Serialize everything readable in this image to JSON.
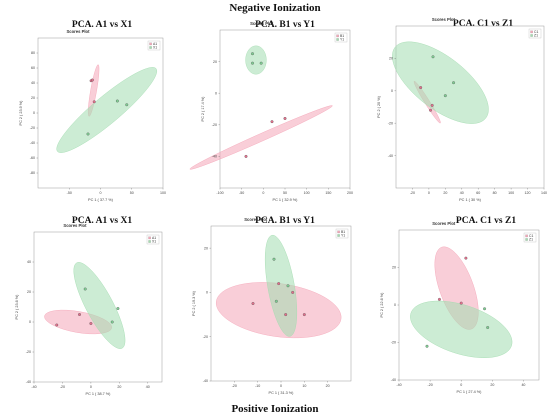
{
  "page": {
    "top_label": "Negative Ionization",
    "bottom_label": "Positive Ionization"
  },
  "colors": {
    "groupA": "#f4a6b8",
    "groupB": "#a3dcb0",
    "groupA_point": "#e46f8c",
    "groupB_point": "#7fcf93"
  },
  "chart_data": [
    {
      "type": "scatter",
      "title": "PCA. A1 vs X1",
      "subtitle": "Scores Plot",
      "xlabel": "PC 1 ( 37.7 %)",
      "ylabel": "PC 2 ( 23.9 %)",
      "xlim": [
        -100,
        100
      ],
      "ylim": [
        -100,
        100
      ],
      "xticks": [
        -50,
        0,
        50,
        100
      ],
      "yticks": [
        -80,
        -60,
        -40,
        -20,
        0,
        20,
        40,
        60,
        80
      ],
      "legend": [
        "A1",
        "X1"
      ],
      "series": [
        {
          "name": "A1",
          "points": [
            [
              -15,
              43
            ],
            [
              -13,
              44
            ],
            [
              -10,
              15
            ]
          ],
          "ellipse": {
            "cx": -11,
            "cy": 30,
            "rx": 42,
            "ry": 4,
            "angle": 80
          }
        },
        {
          "name": "X1",
          "points": [
            [
              -20,
              -28
            ],
            [
              27,
              16
            ],
            [
              42,
              11
            ]
          ],
          "ellipse": {
            "cx": 10,
            "cy": 4,
            "rx": 103,
            "ry": 18,
            "angle": 40
          }
        }
      ]
    },
    {
      "type": "scatter",
      "title": "PCA. B1 vs Y1",
      "subtitle": "Scores Plot",
      "xlabel": "PC 1 ( 32.9 %)",
      "ylabel": "PC 2 ( 17.4 %)",
      "xlim": [
        -100,
        200
      ],
      "ylim": [
        -60,
        40
      ],
      "xticks": [
        -100,
        -50,
        0,
        50,
        100,
        150,
        200
      ],
      "yticks": [
        -40,
        -20,
        0,
        20
      ],
      "legend": [
        "B1",
        "Y1"
      ],
      "series": [
        {
          "name": "B1",
          "points": [
            [
              -40,
              -40
            ],
            [
              20,
              -18
            ],
            [
              50,
              -16
            ]
          ],
          "ellipse": {
            "cx": -5,
            "cy": -28,
            "rx": 180,
            "ry": 2.4,
            "angle": 24
          }
        },
        {
          "name": "Y1",
          "points": [
            [
              -25,
              25
            ],
            [
              -25,
              19
            ],
            [
              -5,
              19
            ]
          ],
          "ellipse": {
            "cx": -17,
            "cy": 21,
            "rx": 24,
            "ry": 9,
            "angle": 0
          }
        }
      ]
    },
    {
      "type": "scatter",
      "title": "PCA. C1 vs Z1",
      "subtitle": "Scores Plot",
      "xlabel": "PC 1 ( 30 %)",
      "ylabel": "PC 2 ( 20 %)",
      "xlim": [
        -40,
        140
      ],
      "ylim": [
        -60,
        40
      ],
      "xticks": [
        -20,
        0,
        20,
        40,
        60,
        80,
        100,
        120,
        140
      ],
      "yticks": [
        -40,
        -20,
        0,
        20
      ],
      "legend": [
        "C1",
        "Z1"
      ],
      "series": [
        {
          "name": "C1",
          "points": [
            [
              -10,
              2
            ],
            [
              4,
              -9
            ],
            [
              2,
              -12
            ]
          ],
          "ellipse": {
            "cx": -2,
            "cy": -7,
            "rx": 30,
            "ry": 1.5,
            "angle": -58
          }
        },
        {
          "name": "Z1",
          "points": [
            [
              5,
              21
            ],
            [
              30,
              5
            ],
            [
              20,
              -3
            ]
          ],
          "ellipse": {
            "cx": 14,
            "cy": 5,
            "rx": 70,
            "ry": 16,
            "angle": -38
          }
        }
      ]
    },
    {
      "type": "scatter",
      "title": "PCA. A1 vs X1",
      "subtitle": "Scores Plot",
      "xlabel": "PC 1 ( 38.7 %)",
      "ylabel": "PC 2 ( 23.6 %)",
      "xlim": [
        -40,
        50
      ],
      "ylim": [
        -40,
        60
      ],
      "xticks": [
        -40,
        -20,
        0,
        20,
        40
      ],
      "yticks": [
        -40,
        -20,
        0,
        20,
        40
      ],
      "legend": [
        "A1",
        "X1"
      ],
      "series": [
        {
          "name": "A1",
          "points": [
            [
              -24,
              -2
            ],
            [
              -8,
              5
            ],
            [
              0,
              -1
            ]
          ],
          "ellipse": {
            "cx": -9,
            "cy": 0,
            "rx": 24,
            "ry": 7,
            "angle": -10
          }
        },
        {
          "name": "X1",
          "points": [
            [
              -4,
              22
            ],
            [
              19,
              9
            ],
            [
              15,
              0
            ]
          ],
          "ellipse": {
            "cx": 6,
            "cy": 11,
            "rx": 34,
            "ry": 9,
            "angle": -62
          }
        }
      ]
    },
    {
      "type": "scatter",
      "title": "PCA. B1 vs Y1",
      "subtitle": "Scores Plot",
      "xlabel": "PC 1 ( 31.3 %)",
      "ylabel": "PC 2 ( 19.3 %)",
      "xlim": [
        -30,
        30
      ],
      "ylim": [
        -40,
        30
      ],
      "xticks": [
        -20,
        -10,
        0,
        10,
        20
      ],
      "yticks": [
        -40,
        -20,
        0,
        20
      ],
      "legend": [
        "B1",
        "Y1"
      ],
      "series": [
        {
          "name": "B1",
          "points": [
            [
              -12,
              -5
            ],
            [
              -1,
              4
            ],
            [
              5,
              0
            ],
            [
              2,
              -10
            ],
            [
              10,
              -10
            ]
          ],
          "ellipse": {
            "cx": -1,
            "cy": -8,
            "rx": 27,
            "ry": 12,
            "angle": -8
          }
        },
        {
          "name": "Y1",
          "points": [
            [
              -3,
              15
            ],
            [
              3,
              3
            ],
            [
              -2,
              -4
            ]
          ],
          "ellipse": {
            "cx": 0,
            "cy": 3,
            "rx": 22,
            "ry": 6,
            "angle": -80
          }
        }
      ]
    },
    {
      "type": "scatter",
      "title": "PCA. C1 vs Z1",
      "subtitle": "Scores Plot",
      "xlabel": "PC 1 ( 27.4 %)",
      "ylabel": "PC 2 ( 22.6 %)",
      "xlim": [
        -40,
        50
      ],
      "ylim": [
        -40,
        40
      ],
      "xticks": [
        -40,
        -20,
        0,
        20,
        40
      ],
      "yticks": [
        -40,
        -20,
        0,
        20
      ],
      "legend": [
        "C1",
        "Z1"
      ],
      "series": [
        {
          "name": "C1",
          "points": [
            [
              -14,
              3
            ],
            [
              0,
              1
            ],
            [
              3,
              25
            ]
          ],
          "ellipse": {
            "cx": -3,
            "cy": 9,
            "rx": 28,
            "ry": 9,
            "angle": -70
          }
        },
        {
          "name": "Z1",
          "points": [
            [
              -22,
              -22
            ],
            [
              15,
              -2
            ],
            [
              17,
              -12
            ]
          ],
          "ellipse": {
            "cx": 0,
            "cy": -13,
            "rx": 34,
            "ry": 13,
            "angle": -18
          }
        }
      ]
    }
  ]
}
